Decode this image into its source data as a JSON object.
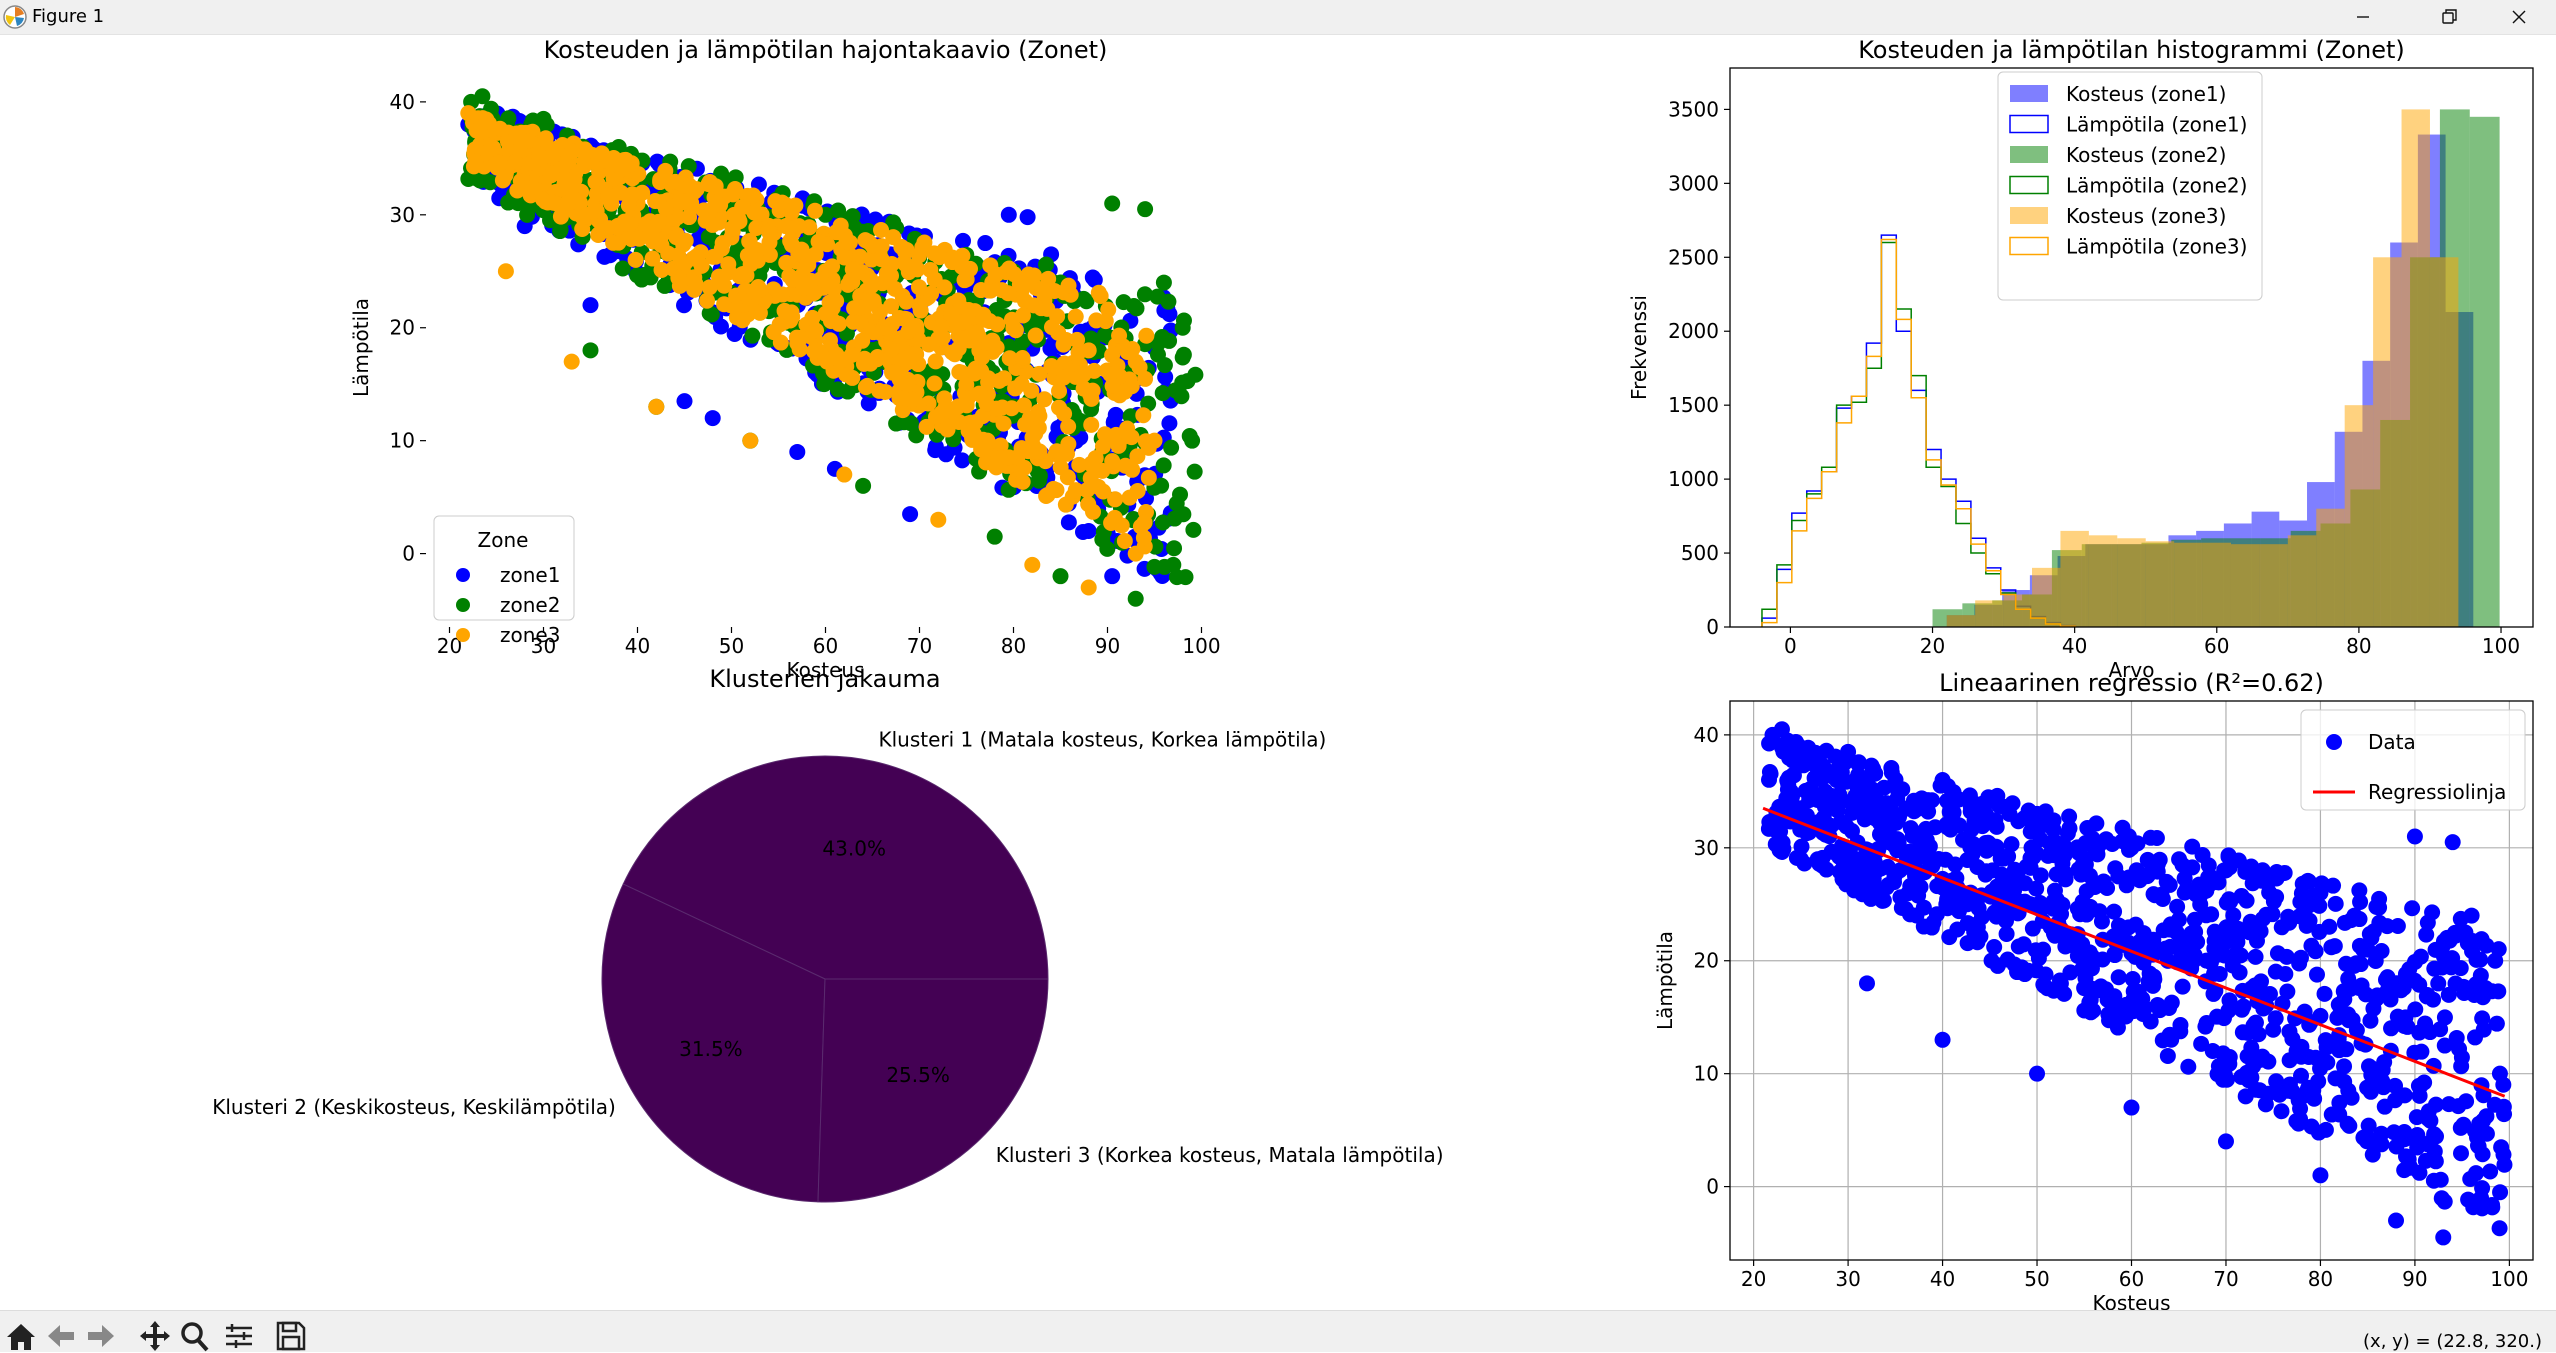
{
  "window": {
    "title": "Figure 1",
    "coord_readout": "(x, y) = (22.8, 320.)"
  },
  "icons": {
    "app": "matplotlib-logo-icon",
    "minimize": "minimize-icon",
    "restore": "restore-icon",
    "close": "close-icon",
    "toolbar": [
      "home-icon",
      "back-arrow-icon",
      "forward-arrow-icon",
      "pan-move-icon",
      "zoom-magnifier-icon",
      "configure-subplots-icon",
      "save-disk-icon"
    ]
  },
  "colors": {
    "zone1": "#0000ff",
    "zone2": "#008000",
    "zone3": "#ffa500",
    "regression": "#ff0000",
    "pie": "#440154"
  },
  "chart_data": [
    {
      "type": "scatter",
      "title": "Kosteuden ja lämpötilan hajontakaavio (Zonet)",
      "xlabel": "Kosteus",
      "ylabel": "Lämpötila",
      "xlim": [
        17.5,
        102.5
      ],
      "ylim": [
        -6.5,
        43
      ],
      "xticks": [
        20,
        30,
        40,
        50,
        60,
        70,
        80,
        90,
        100
      ],
      "yticks": [
        0,
        10,
        20,
        30,
        40
      ],
      "grid": false,
      "legend": {
        "title": "Zone",
        "position": "lower-left",
        "entries": [
          "zone1",
          "zone2",
          "zone3"
        ]
      },
      "series": [
        {
          "name": "zone1",
          "color": "#0000ff",
          "marker": "o",
          "x": [
            22.0,
            28.0,
            35.0,
            45.0,
            48.0,
            57.0,
            61.0,
            69.0,
            77.0,
            79.5,
            81.5,
            84.0,
            88.0,
            90.5,
            94.0
          ],
          "y": [
            38.0,
            29.0,
            22.0,
            13.5,
            12.0,
            9.0,
            7.5,
            3.5,
            27.5,
            30.0,
            29.8,
            26.5,
            2.0,
            -2.0,
            1.0
          ]
        },
        {
          "name": "zone2",
          "color": "#008000",
          "marker": "o",
          "x": [
            22.3,
            23.5,
            30.0,
            38.0,
            50.0,
            60.0,
            70.0,
            80.0,
            90.5,
            94.0,
            96.0,
            98.0,
            99.0,
            97.0,
            93.0,
            85.0,
            78.0,
            64.0,
            52.0,
            42.0,
            35.0
          ],
          "y": [
            40.0,
            40.5,
            38.5,
            36.0,
            33.0,
            30.0,
            27.0,
            25.0,
            31.0,
            30.5,
            24.0,
            20.0,
            10.0,
            -1.0,
            -4.0,
            -2.0,
            1.5,
            6.0,
            10.0,
            13.0,
            18.0
          ]
        },
        {
          "name": "zone3",
          "color": "#ffa500",
          "marker": "o",
          "x": [
            22.0,
            24.0,
            30.0,
            40.0,
            50.0,
            60.0,
            70.0,
            80.0,
            88.0,
            93.0,
            95.0,
            93.0,
            88.0,
            82.0,
            72.0,
            62.0,
            52.0,
            42.0,
            33.0,
            26.0
          ],
          "y": [
            39.0,
            35.0,
            32.0,
            31.0,
            28.0,
            25.0,
            22.0,
            20.0,
            18.0,
            17.0,
            10.0,
            0.0,
            -3.0,
            -1.0,
            3.0,
            7.0,
            10.0,
            13.0,
            17.0,
            25.0
          ]
        }
      ]
    },
    {
      "type": "histogram",
      "title": "Kosteuden ja lämpötilan histogrammi (Zonet)",
      "xlabel": "Arvo",
      "ylabel": "Frekvenssi",
      "xlim": [
        -8.5,
        104.5
      ],
      "ylim": [
        0,
        3780
      ],
      "xticks": [
        0,
        20,
        40,
        60,
        80,
        100
      ],
      "yticks": [
        0,
        500,
        1000,
        1500,
        2000,
        2500,
        3000,
        3500
      ],
      "grid": false,
      "legend": {
        "position": "top-center",
        "entries": [
          "Kosteus (zone1)",
          "Lämpötila (zone1)",
          "Kosteus (zone2)",
          "Lämpötila (zone2)",
          "Kosteus (zone3)",
          "Lämpötila (zone3)"
        ]
      },
      "series": [
        {
          "name": "Kosteus (zone1)",
          "style": "filled",
          "color": "#0000ff",
          "alpha": 0.5,
          "bin_edges": [
            22,
            25.9,
            29.8,
            33.7,
            37.6,
            41.5,
            45.4,
            49.3,
            53.2,
            57.1,
            61,
            64.9,
            68.8,
            72.7,
            76.6,
            80.5,
            84.4,
            88.3,
            92.2,
            96.1,
            100
          ],
          "counts": [
            80,
            150,
            250,
            350,
            480,
            560,
            560,
            560,
            620,
            650,
            700,
            780,
            720,
            980,
            1320,
            1800,
            2600,
            3330,
            2130,
            0
          ]
        },
        {
          "name": "Lämpötila (zone1)",
          "style": "step",
          "color": "#0000ff",
          "bin_edges": [
            -4,
            -1.9,
            0.2,
            2.3,
            4.4,
            6.5,
            8.6,
            10.7,
            12.8,
            14.9,
            17,
            19.1,
            21.2,
            23.3,
            25.4,
            27.5,
            29.6,
            31.7,
            33.8,
            35.9,
            38,
            40.1
          ],
          "counts": [
            60,
            390,
            770,
            920,
            1050,
            1480,
            1560,
            1920,
            2650,
            2000,
            1600,
            1200,
            1000,
            850,
            600,
            400,
            250,
            140,
            70,
            30,
            10
          ]
        },
        {
          "name": "Kosteus (zone2)",
          "style": "filled",
          "color": "#008000",
          "alpha": 0.5,
          "bin_edges": [
            20,
            24.2,
            28.4,
            32.6,
            36.8,
            41,
            45.2,
            49.4,
            53.6,
            57.8,
            62,
            66.2,
            70.4,
            74.6,
            78.8,
            83,
            87.2,
            91.4,
            95.6,
            99.8
          ],
          "counts": [
            120,
            160,
            180,
            220,
            520,
            560,
            560,
            570,
            590,
            600,
            600,
            600,
            650,
            700,
            930,
            1400,
            2500,
            3500,
            3450
          ]
        },
        {
          "name": "Lämpötila (zone2)",
          "style": "step",
          "color": "#008000",
          "bin_edges": [
            -4,
            -1.9,
            0.2,
            2.3,
            4.4,
            6.5,
            8.6,
            10.7,
            12.8,
            14.9,
            17,
            19.1,
            21.2,
            23.3,
            25.4,
            27.5,
            29.6,
            31.7,
            33.8,
            35.9,
            38,
            40.1
          ],
          "counts": [
            120,
            420,
            720,
            900,
            1080,
            1500,
            1520,
            1750,
            2600,
            2150,
            1700,
            1080,
            950,
            700,
            500,
            360,
            230,
            120,
            60,
            20,
            5
          ]
        },
        {
          "name": "Kosteus (zone3)",
          "style": "filled",
          "color": "#ffa500",
          "alpha": 0.5,
          "bin_edges": [
            22,
            26,
            30,
            34,
            38,
            42,
            46,
            50,
            54,
            58,
            62,
            66,
            70,
            74,
            78,
            82,
            86,
            90,
            94,
            98
          ],
          "counts": [
            80,
            180,
            220,
            400,
            650,
            620,
            600,
            580,
            570,
            570,
            560,
            560,
            620,
            800,
            1500,
            2500,
            3500,
            2500,
            0
          ]
        },
        {
          "name": "Lämpötila (zone3)",
          "style": "step",
          "color": "#ffa500",
          "bin_edges": [
            -4,
            -1.9,
            0.2,
            2.3,
            4.4,
            6.5,
            8.6,
            10.7,
            12.8,
            14.9,
            17,
            19.1,
            21.2,
            23.3,
            25.4,
            27.5,
            29.6,
            31.7,
            33.8,
            35.9,
            38,
            40.1
          ],
          "counts": [
            30,
            300,
            650,
            870,
            1050,
            1380,
            1560,
            1830,
            2620,
            2080,
            1550,
            1130,
            960,
            800,
            560,
            380,
            220,
            120,
            60,
            20,
            5
          ]
        }
      ]
    },
    {
      "type": "pie",
      "title": "Klusterien jakauma",
      "color": "#440154",
      "labels": [
        "Klusteri 1 (Matala kosteus, Korkea lämpötila)",
        "Klusteri 2 (Keskikosteus, Keskilämpötila)",
        "Klusteri 3 (Korkea kosteus, Matala lämpötila)"
      ],
      "values": [
        43.0,
        31.5,
        25.5
      ],
      "autopct_labels": [
        "43.0%",
        "31.5%",
        "25.5%"
      ]
    },
    {
      "type": "scatter",
      "title": "Lineaarinen regressio (R²=0.62)",
      "xlabel": "Kosteus",
      "ylabel": "Lämpötila",
      "xlim": [
        17.5,
        102.5
      ],
      "ylim": [
        -6.5,
        43
      ],
      "xticks": [
        20,
        30,
        40,
        50,
        60,
        70,
        80,
        90,
        100
      ],
      "yticks": [
        0,
        10,
        20,
        30,
        40
      ],
      "grid": true,
      "legend": {
        "position": "top-right",
        "entries": [
          "Data",
          "Regressiolinja"
        ]
      },
      "series": [
        {
          "name": "Data",
          "color": "#0000ff",
          "marker": "o",
          "x": [
            22.0,
            23.0,
            30.0,
            40.0,
            50.0,
            60.0,
            70.0,
            80.0,
            90.0,
            94.0,
            96.0,
            98.5,
            99.0,
            97.0,
            93.0,
            88.0,
            80.0,
            70.0,
            60.0,
            50.0,
            40.0,
            32.0,
            25.0
          ],
          "y": [
            40.0,
            40.5,
            38.5,
            36.0,
            33.0,
            30.0,
            28.0,
            26.0,
            31.0,
            30.5,
            24.0,
            20.0,
            10.0,
            -1.0,
            -4.5,
            -3.0,
            1.0,
            4.0,
            7.0,
            10.0,
            13.0,
            18.0,
            29.0
          ]
        },
        {
          "name": "Regressiolinja",
          "type": "line",
          "color": "#ff0000",
          "x": [
            21.0,
            99.5
          ],
          "y": [
            33.5,
            8.0
          ]
        }
      ]
    }
  ]
}
